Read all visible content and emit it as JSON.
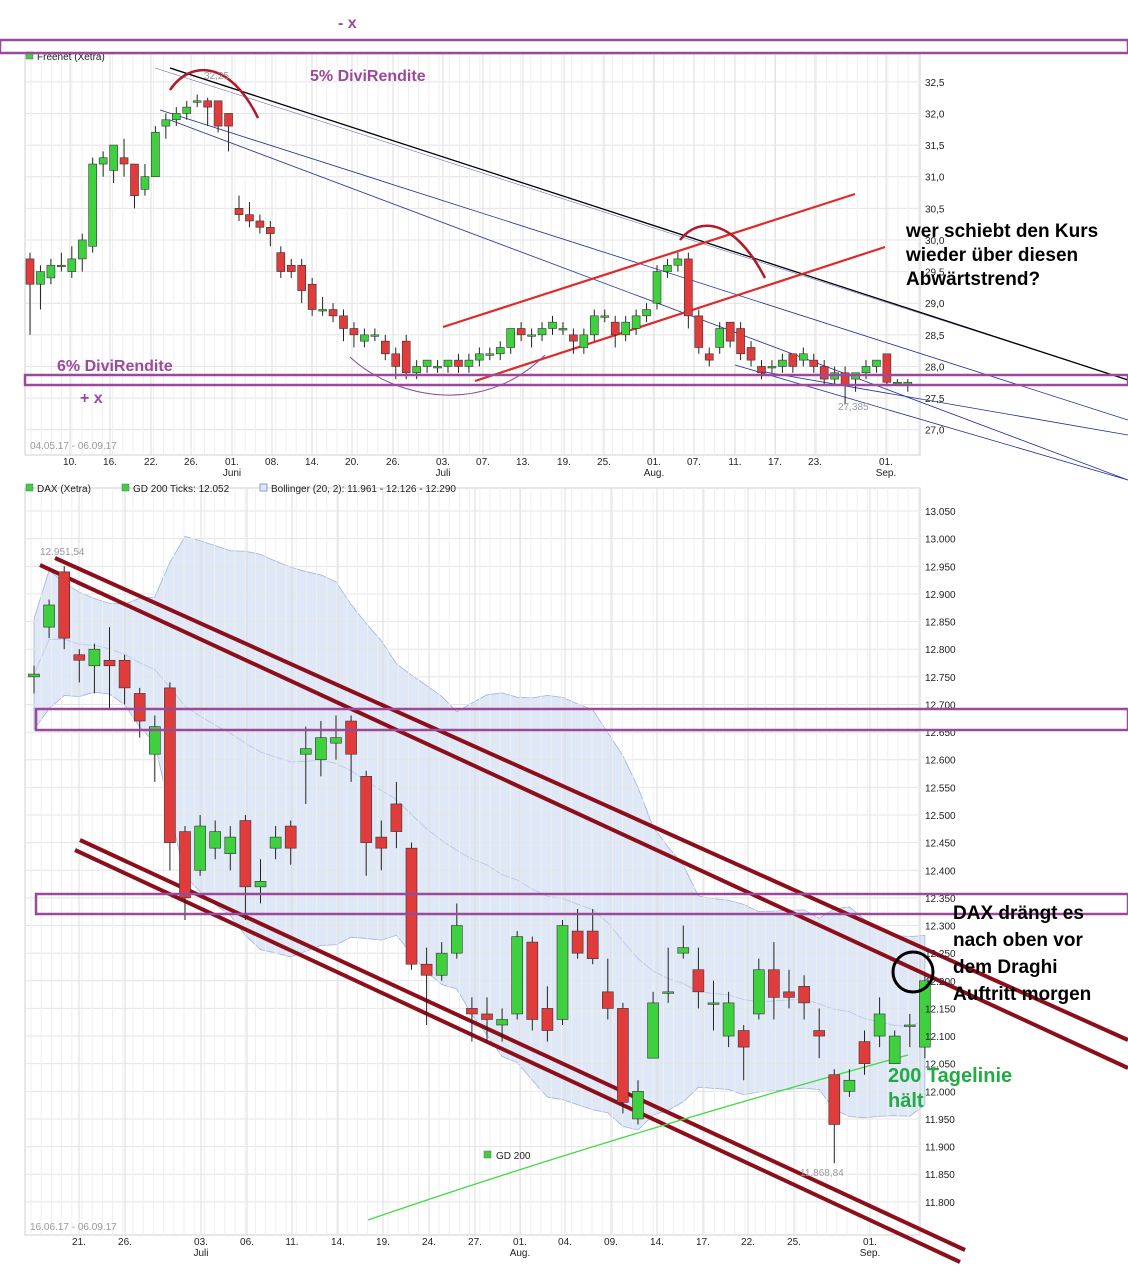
{
  "colors": {
    "up": "#3fd03f",
    "down": "#e03c3c",
    "band": "#dfe8f7",
    "annotation_purple": "#9b4a9b",
    "dark_red": "#8b0e1a",
    "bright_red": "#e02a2a",
    "navy": "#1a2a9a",
    "ma_green": "#44d944"
  },
  "chart_data": [
    {
      "type": "candlestick",
      "legend": "Freenet (Xetra)",
      "range_label": "04.05.17 - 06.09.17",
      "ylim": [
        26.6,
        32.75
      ],
      "yticks": [
        "32,5",
        "32,0",
        "31,5",
        "31,0",
        "30,5",
        "30,0",
        "29,5",
        "29,0",
        "28,5",
        "28,0",
        "27,5",
        "27,0"
      ],
      "xticks": [
        "10.",
        "16.",
        "22.",
        "26.",
        "01.",
        "08.",
        "14.",
        "20.",
        "26.",
        "03.",
        "07.",
        "13.",
        "19.",
        "25.",
        "01.",
        "07.",
        "11.",
        "17.",
        "23.",
        "01."
      ],
      "month_labels": [
        "Juni",
        "Juli",
        "Aug.",
        "Sep."
      ],
      "high_label": "32,25",
      "low_label": "27,385",
      "candles": [
        [
          29.7,
          29.3,
          29.8,
          28.5
        ],
        [
          29.3,
          29.5,
          29.6,
          28.9
        ],
        [
          29.4,
          29.6,
          29.7,
          29.3
        ],
        [
          29.6,
          29.6,
          29.8,
          29.5
        ],
        [
          29.5,
          29.7,
          29.9,
          29.4
        ],
        [
          29.7,
          30.0,
          30.1,
          29.5
        ],
        [
          29.9,
          31.2,
          31.3,
          29.8
        ],
        [
          31.2,
          31.3,
          31.4,
          31.0
        ],
        [
          31.1,
          31.5,
          31.5,
          30.9
        ],
        [
          31.3,
          31.2,
          31.6,
          31.0
        ],
        [
          31.2,
          30.7,
          31.2,
          30.5
        ],
        [
          30.8,
          31.0,
          31.2,
          30.7
        ],
        [
          31.0,
          31.7,
          31.8,
          31.0
        ],
        [
          31.8,
          31.9,
          32.0,
          31.6
        ],
        [
          31.9,
          32.0,
          32.1,
          31.8
        ],
        [
          32.0,
          32.1,
          32.2,
          31.9
        ],
        [
          32.2,
          32.2,
          32.3,
          32.1
        ],
        [
          32.2,
          32.1,
          32.25,
          31.8
        ],
        [
          32.2,
          31.8,
          32.2,
          31.7
        ],
        [
          32.0,
          31.8,
          32.0,
          31.4
        ],
        [
          30.5,
          30.4,
          30.7,
          30.3
        ],
        [
          30.4,
          30.3,
          30.6,
          30.2
        ],
        [
          30.3,
          30.2,
          30.4,
          30.1
        ],
        [
          30.2,
          30.1,
          30.3,
          29.9
        ],
        [
          29.8,
          29.5,
          29.9,
          29.4
        ],
        [
          29.6,
          29.5,
          29.7,
          29.4
        ],
        [
          29.6,
          29.2,
          29.7,
          29.0
        ],
        [
          29.3,
          28.9,
          29.4,
          28.8
        ],
        [
          28.9,
          28.9,
          29.1,
          28.8
        ],
        [
          28.9,
          28.8,
          29.0,
          28.7
        ],
        [
          28.8,
          28.6,
          28.9,
          28.4
        ],
        [
          28.6,
          28.5,
          28.7,
          28.3
        ],
        [
          28.4,
          28.5,
          28.6,
          28.3
        ],
        [
          28.5,
          28.5,
          28.6,
          28.4
        ],
        [
          28.4,
          28.2,
          28.5,
          28.1
        ],
        [
          28.2,
          28.0,
          28.3,
          27.8
        ],
        [
          28.4,
          27.9,
          28.5,
          27.8
        ],
        [
          27.9,
          28.0,
          28.1,
          27.8
        ],
        [
          28.0,
          28.1,
          28.1,
          27.9
        ],
        [
          28.0,
          28.0,
          28.1,
          27.9
        ],
        [
          28.0,
          28.1,
          28.1,
          27.9
        ],
        [
          28.1,
          28.0,
          28.2,
          27.9
        ],
        [
          28.0,
          28.1,
          28.2,
          27.9
        ],
        [
          28.1,
          28.2,
          28.3,
          28.0
        ],
        [
          28.2,
          28.2,
          28.3,
          28.1
        ],
        [
          28.2,
          28.3,
          28.4,
          28.1
        ],
        [
          28.3,
          28.6,
          28.6,
          28.2
        ],
        [
          28.6,
          28.5,
          28.7,
          28.4
        ],
        [
          28.5,
          28.5,
          28.6,
          28.3
        ],
        [
          28.5,
          28.6,
          28.7,
          28.4
        ],
        [
          28.6,
          28.7,
          28.8,
          28.5
        ],
        [
          28.6,
          28.6,
          28.7,
          28.5
        ],
        [
          28.5,
          28.4,
          28.6,
          28.2
        ],
        [
          28.3,
          28.5,
          28.6,
          28.2
        ],
        [
          28.5,
          28.8,
          28.9,
          28.4
        ],
        [
          28.8,
          28.8,
          28.9,
          28.7
        ],
        [
          28.7,
          28.5,
          28.8,
          28.3
        ],
        [
          28.5,
          28.7,
          28.8,
          28.4
        ],
        [
          28.6,
          28.8,
          28.9,
          28.5
        ],
        [
          28.8,
          28.9,
          29.0,
          28.7
        ],
        [
          29.0,
          29.5,
          29.6,
          28.9
        ],
        [
          29.5,
          29.6,
          29.7,
          29.4
        ],
        [
          29.6,
          29.7,
          29.8,
          29.5
        ],
        [
          29.7,
          28.8,
          29.8,
          28.6
        ],
        [
          28.8,
          28.3,
          28.9,
          28.2
        ],
        [
          28.2,
          28.1,
          28.3,
          28.0
        ],
        [
          28.3,
          28.6,
          28.7,
          28.2
        ],
        [
          28.7,
          28.4,
          28.7,
          28.3
        ],
        [
          28.6,
          28.2,
          28.7,
          28.1
        ],
        [
          28.3,
          28.1,
          28.4,
          28.0
        ],
        [
          28.0,
          27.9,
          28.1,
          27.8
        ],
        [
          28.0,
          28.0,
          28.1,
          27.9
        ],
        [
          28.0,
          28.1,
          28.2,
          27.9
        ],
        [
          28.2,
          28.0,
          28.2,
          27.9
        ],
        [
          28.1,
          28.2,
          28.3,
          28.0
        ],
        [
          28.1,
          28.0,
          28.2,
          27.9
        ],
        [
          28.0,
          27.8,
          28.1,
          27.7
        ],
        [
          27.8,
          27.9,
          28.0,
          27.7
        ],
        [
          27.9,
          27.7,
          28.0,
          27.4
        ],
        [
          27.8,
          27.9,
          27.9,
          27.6
        ],
        [
          27.9,
          28.0,
          28.1,
          27.8
        ],
        [
          28.0,
          28.1,
          28.1,
          27.9
        ],
        [
          28.2,
          27.75,
          28.2,
          27.7
        ],
        [
          27.75,
          27.75,
          27.8,
          27.7
        ],
        [
          27.7,
          27.75,
          27.8,
          27.6
        ]
      ]
    },
    {
      "type": "candlestick",
      "legend": [
        "DAX (Xetra)",
        "GD 200 Ticks: 12.052",
        "Bollinger (20, 2): 11.961 - 12.126 - 12.290"
      ],
      "range_label": "16.06.17 - 06.09.17",
      "ylim": [
        11.74,
        13.07
      ],
      "yticks": [
        "13.050",
        "13.000",
        "12.950",
        "12.900",
        "12.850",
        "12.800",
        "12.750",
        "12.700",
        "12.650",
        "12.600",
        "12.550",
        "12.500",
        "12.450",
        "12.400",
        "12.350",
        "12.300",
        "12.250",
        "12.200",
        "12.150",
        "12.100",
        "12.050",
        "12.000",
        "11.950",
        "11.900",
        "11.850",
        "11.800"
      ],
      "xticks": [
        "21.",
        "26.",
        "03.",
        "06.",
        "11.",
        "14.",
        "19.",
        "24.",
        "27.",
        "01.",
        "04.",
        "09.",
        "14.",
        "17.",
        "22.",
        "25.",
        "01."
      ],
      "month_labels": [
        "Juli",
        "Aug.",
        "Sep."
      ],
      "high_label": "12.951,54",
      "low_label": "11.868,84",
      "ma_legend": "GD 200",
      "candles": [
        [
          12.75,
          12.755,
          12.77,
          12.72
        ],
        [
          12.84,
          12.88,
          12.89,
          12.82
        ],
        [
          12.94,
          12.82,
          12.95,
          12.8
        ],
        [
          12.79,
          12.78,
          12.8,
          12.74
        ],
        [
          12.77,
          12.8,
          12.81,
          12.72
        ],
        [
          12.78,
          12.77,
          12.84,
          12.69
        ],
        [
          12.78,
          12.73,
          12.79,
          12.7
        ],
        [
          12.72,
          12.67,
          12.73,
          12.64
        ],
        [
          12.61,
          12.66,
          12.68,
          12.56
        ],
        [
          12.73,
          12.45,
          12.74,
          12.4
        ],
        [
          12.47,
          12.35,
          12.48,
          12.31
        ],
        [
          12.4,
          12.48,
          12.5,
          12.39
        ],
        [
          12.44,
          12.47,
          12.49,
          12.42
        ],
        [
          12.43,
          12.46,
          12.48,
          12.4
        ],
        [
          12.49,
          12.37,
          12.5,
          12.31
        ],
        [
          12.37,
          12.38,
          12.42,
          12.34
        ],
        [
          12.44,
          12.46,
          12.48,
          12.42
        ],
        [
          12.48,
          12.44,
          12.49,
          12.41
        ],
        [
          12.61,
          12.62,
          12.66,
          12.52
        ],
        [
          12.6,
          12.64,
          12.67,
          12.57
        ],
        [
          12.63,
          12.64,
          12.68,
          12.6
        ],
        [
          12.67,
          12.61,
          12.68,
          12.56
        ],
        [
          12.57,
          12.45,
          12.58,
          12.39
        ],
        [
          12.46,
          12.44,
          12.49,
          12.4
        ],
        [
          12.52,
          12.47,
          12.56,
          12.44
        ],
        [
          12.44,
          12.23,
          12.45,
          12.22
        ],
        [
          12.23,
          12.21,
          12.26,
          12.12
        ],
        [
          12.21,
          12.25,
          12.27,
          12.2
        ],
        [
          12.25,
          12.3,
          12.34,
          12.24
        ],
        [
          12.15,
          12.14,
          12.17,
          12.09
        ],
        [
          12.14,
          12.13,
          12.17,
          12.09
        ],
        [
          12.12,
          12.13,
          12.15,
          12.09
        ],
        [
          12.14,
          12.28,
          12.29,
          12.13
        ],
        [
          12.27,
          12.13,
          12.28,
          12.11
        ],
        [
          12.15,
          12.11,
          12.19,
          12.09
        ],
        [
          12.13,
          12.3,
          12.31,
          12.12
        ],
        [
          12.29,
          12.25,
          12.33,
          12.24
        ],
        [
          12.29,
          12.24,
          12.33,
          12.23
        ],
        [
          12.18,
          12.15,
          12.24,
          12.13
        ],
        [
          12.15,
          11.98,
          12.16,
          11.96
        ],
        [
          11.95,
          12.0,
          12.02,
          11.94
        ],
        [
          12.06,
          12.16,
          12.18,
          12.06
        ],
        [
          12.18,
          12.18,
          12.26,
          12.16
        ],
        [
          12.25,
          12.26,
          12.3,
          12.24
        ],
        [
          12.22,
          12.18,
          12.26,
          12.15
        ],
        [
          12.16,
          12.16,
          12.2,
          12.11
        ],
        [
          12.1,
          12.16,
          12.18,
          12.08
        ],
        [
          12.11,
          12.08,
          12.12,
          12.02
        ],
        [
          12.14,
          12.22,
          12.24,
          12.13
        ],
        [
          12.22,
          12.17,
          12.27,
          12.13
        ],
        [
          12.18,
          12.17,
          12.22,
          12.15
        ],
        [
          12.19,
          12.16,
          12.21,
          12.13
        ],
        [
          12.11,
          12.1,
          12.15,
          12.06
        ],
        [
          12.03,
          11.94,
          12.04,
          11.87
        ],
        [
          12.0,
          12.02,
          12.04,
          11.99
        ],
        [
          12.09,
          12.05,
          12.11,
          12.03
        ],
        [
          12.1,
          12.14,
          12.17,
          12.08
        ],
        [
          12.05,
          12.1,
          12.11,
          12.05
        ],
        [
          12.12,
          12.12,
          12.14,
          12.08
        ],
        [
          12.08,
          12.2,
          12.21,
          12.06
        ]
      ]
    }
  ],
  "annotations": {
    "minus_x": "- x",
    "plus_x": "+ x",
    "div5": "5% DiviRendite",
    "div6": "6% DiviRendite",
    "question": [
      "wer schiebt den Kurs",
      "wieder über diesen",
      "Abwärtstrend?"
    ],
    "dax_note": [
      "DAX drängt es",
      "nach oben vor",
      "dem Draghi",
      "Auftritt morgen"
    ],
    "ma_note": [
      "200 Tagelinie",
      "hält"
    ]
  }
}
